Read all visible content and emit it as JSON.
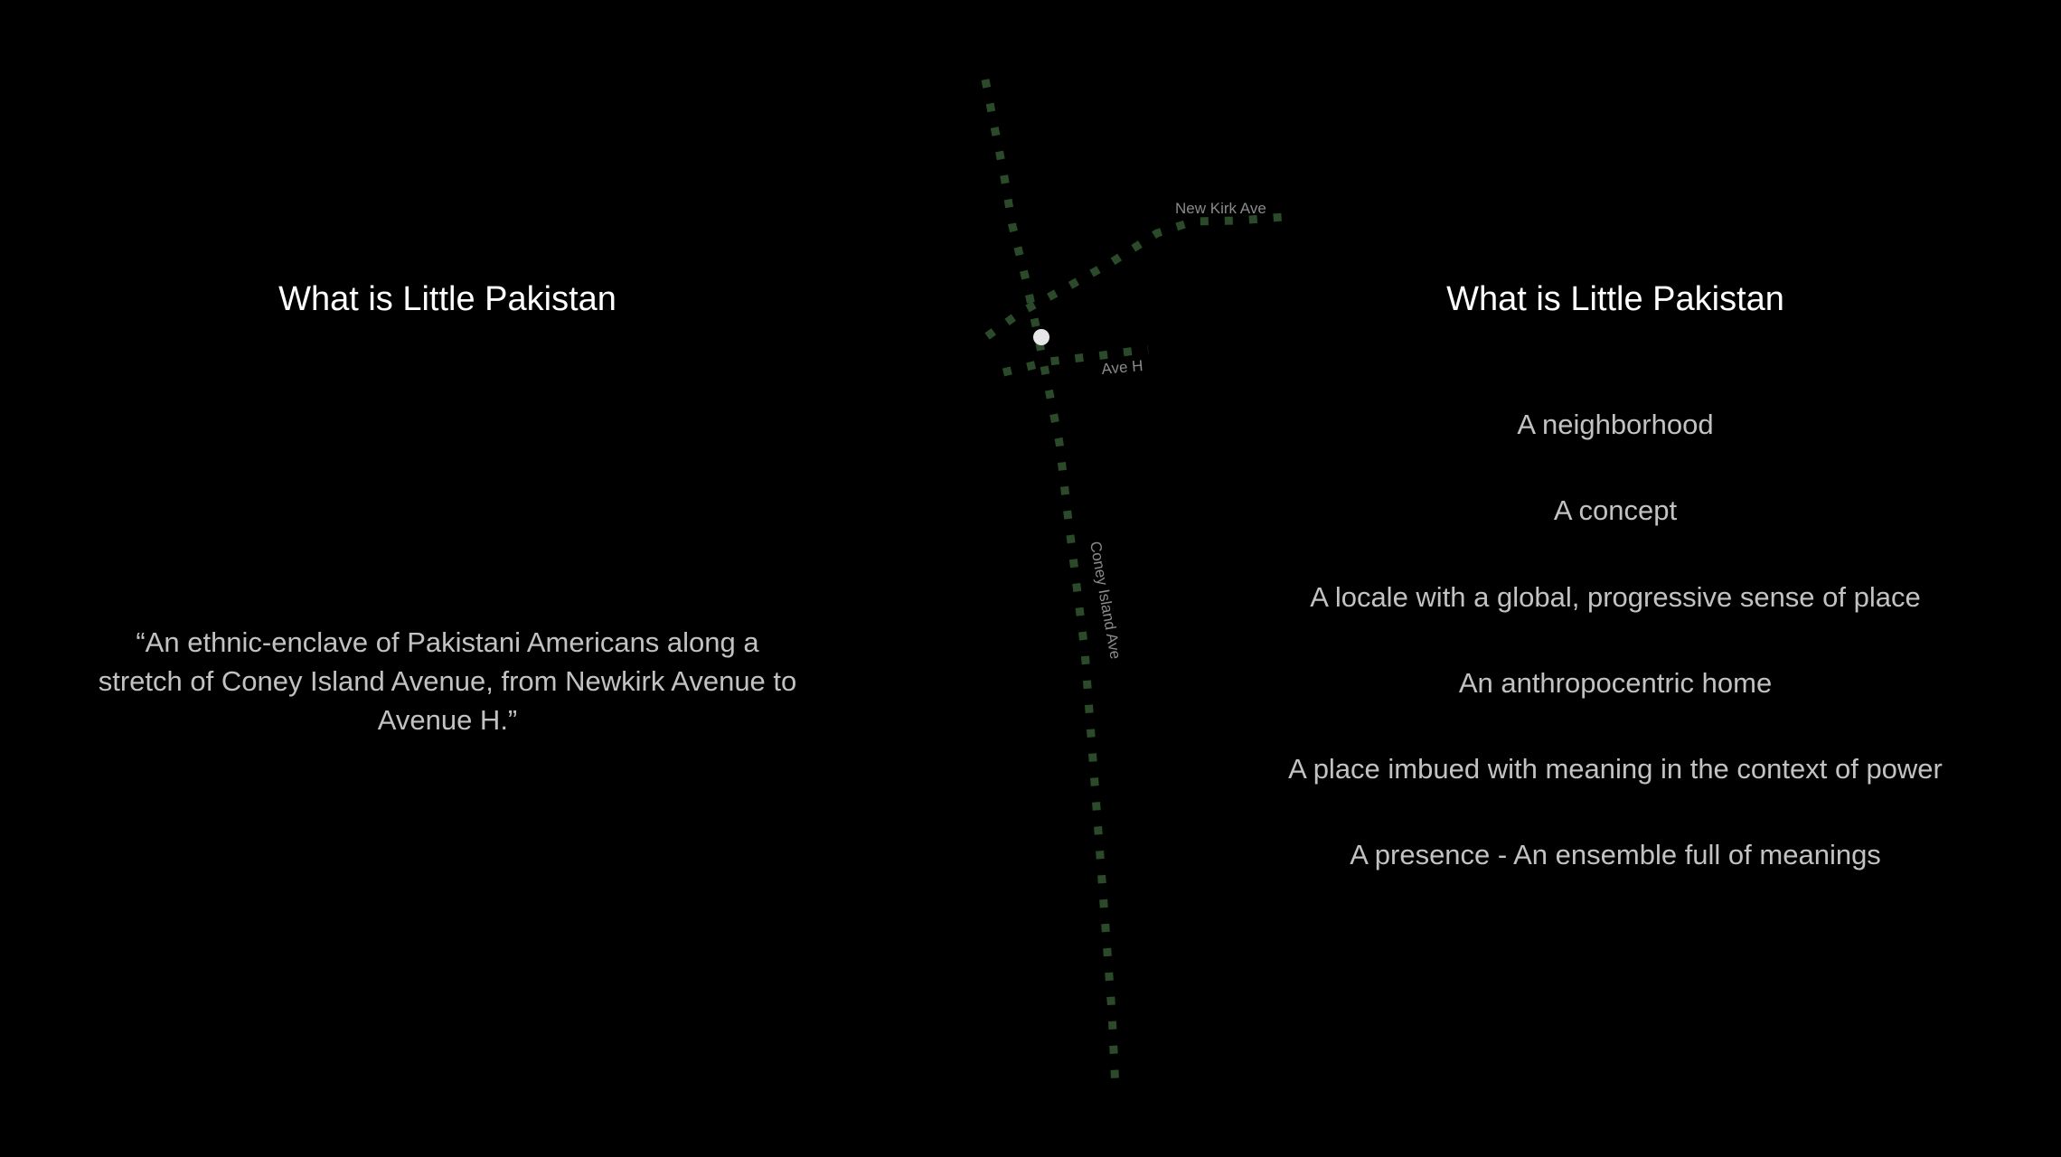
{
  "left": {
    "title": "What is Little Pakistan",
    "quote": "“An ethnic-enclave of Pakistani Americans along a stretch of Coney Island Avenue, from Newkirk Avenue to Avenue H.”"
  },
  "right": {
    "title": "What is Little Pakistan",
    "items": [
      "A neighborhood",
      "A concept",
      "A locale with a global, progressive sense of place",
      "An anthropocentric home",
      "A place imbued with meaning in the context of power",
      "A presence -  An ensemble full of meanings"
    ]
  },
  "map": {
    "streets": {
      "newkirk": "New Kirk Ave",
      "ave_h": "Ave H",
      "coney_island": "Coney Island Ave"
    },
    "colors": {
      "street_dots": "#2a4a2a",
      "location_dot": "#e6e6e6"
    },
    "location_icon": "location-dot-icon"
  }
}
